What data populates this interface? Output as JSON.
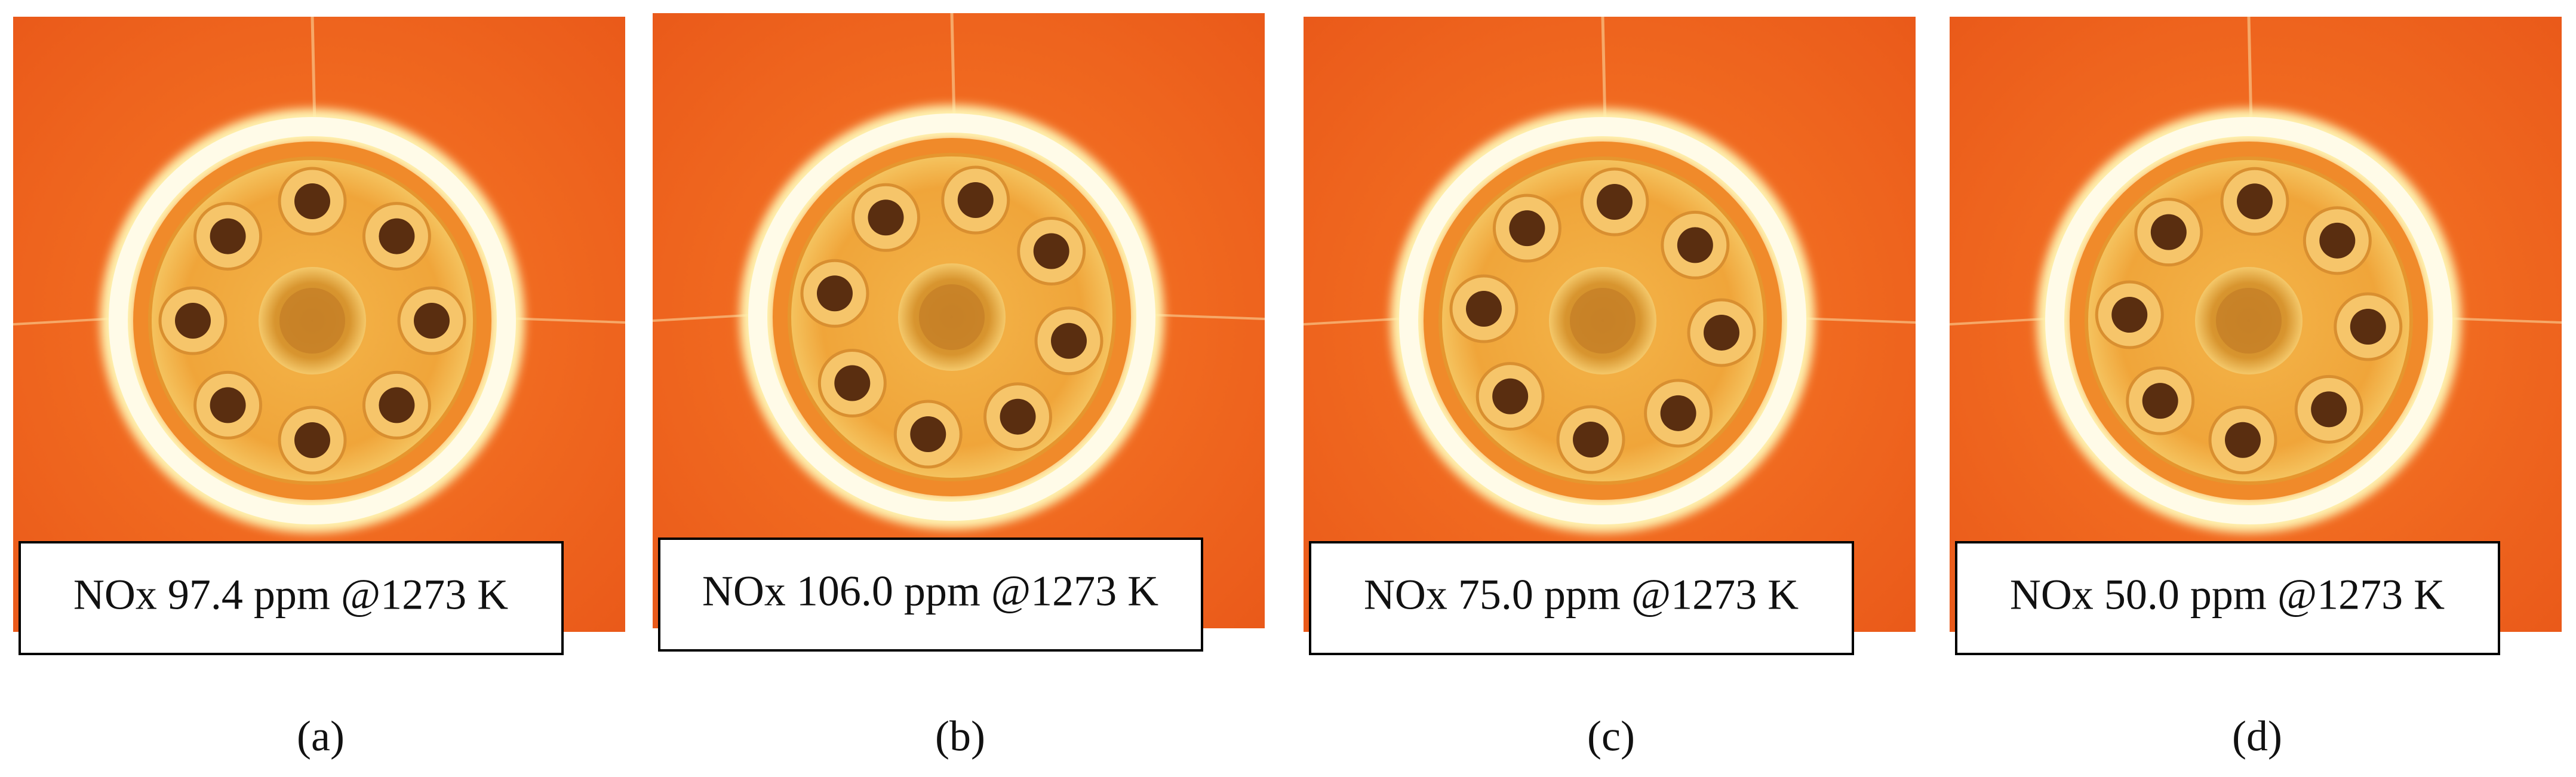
{
  "panels": [
    {
      "label": "NOx 97.4 ppm @1273 K",
      "caption": "(a)"
    },
    {
      "label": "NOx 106.0 ppm @1273 K",
      "caption": "(b)"
    },
    {
      "label": "NOx 75.0 ppm @1273 K",
      "caption": "(c)"
    },
    {
      "label": "NOx 50.0 ppm @1273 K",
      "caption": "(d)"
    }
  ]
}
